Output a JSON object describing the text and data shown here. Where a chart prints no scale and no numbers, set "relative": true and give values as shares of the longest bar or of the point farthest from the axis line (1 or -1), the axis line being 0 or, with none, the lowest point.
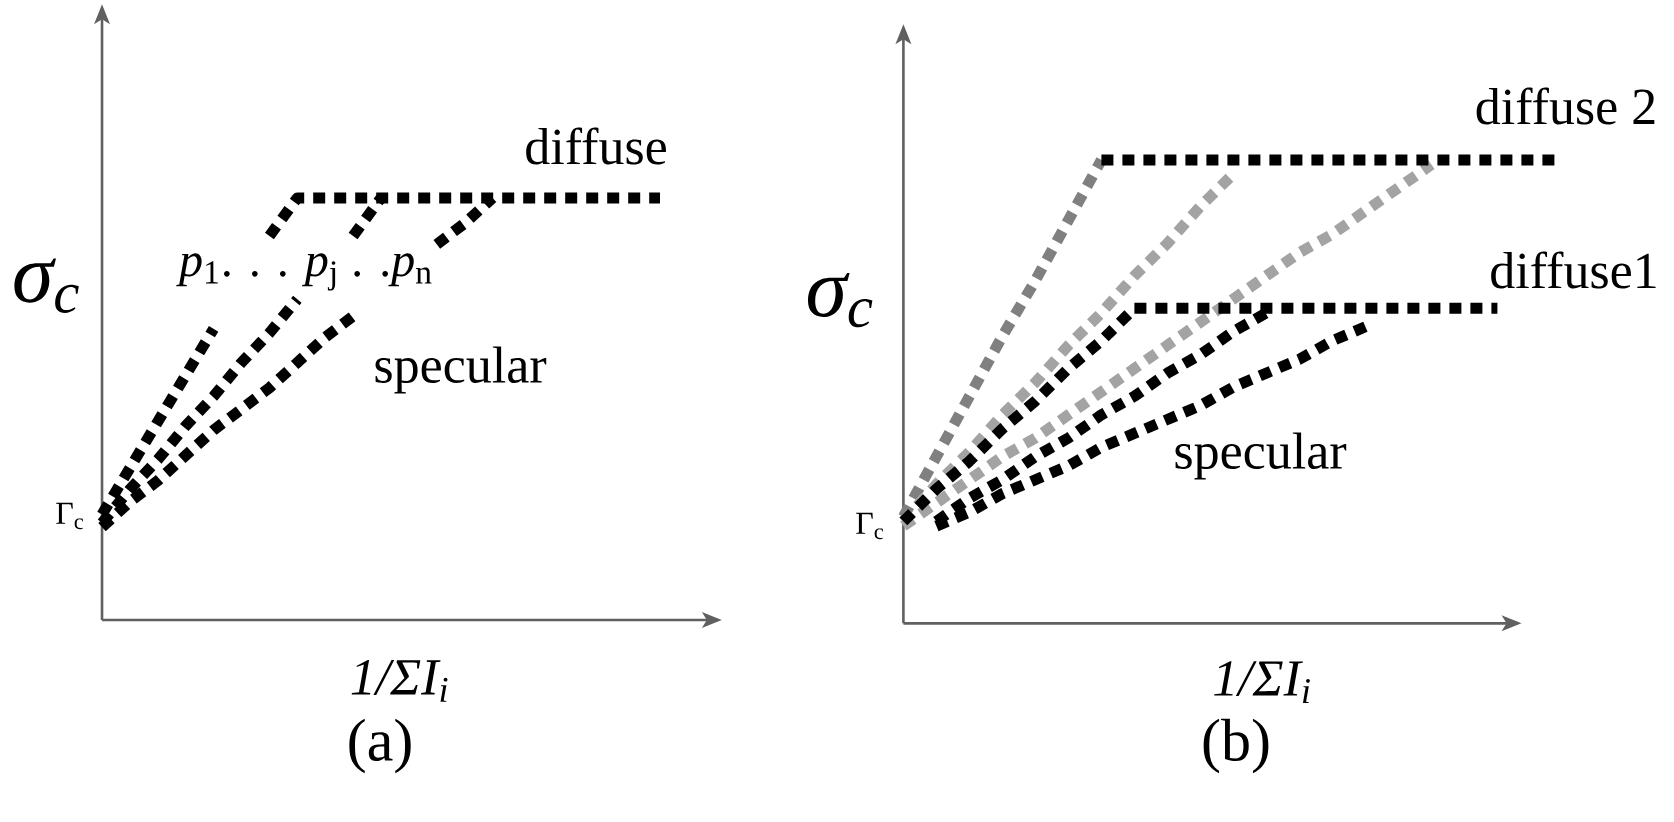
{
  "chart_data": [
    {
      "type": "line",
      "relative": true,
      "line_style": "dotted",
      "xlabel": "1/ΣI$_{i}$",
      "ylabel": "σ$_{c}$",
      "categories": [
        null,
        null,
        null,
        null,
        null,
        null,
        null,
        null,
        null,
        null,
        null,
        null,
        null,
        null,
        null,
        null,
        null,
        null,
        null,
        null,
        null
      ],
      "series": [
        {
          "color": "#000000",
          "values": [
            0.25,
            0.36,
            0.47,
            0.58,
            0.69,
            null,
            null,
            null,
            null,
            null,
            null,
            null,
            null,
            null,
            null,
            null,
            null,
            null,
            null,
            null,
            null
          ]
        },
        {
          "color": "#000000",
          "values": [
            null,
            null,
            null,
            null,
            null,
            null,
            0.91,
            1.0,
            1.0,
            1.0,
            1.0,
            1.0,
            1.0,
            1.0,
            1.0,
            1.0,
            1.0,
            1.0,
            1.0,
            1.0,
            1.0
          ]
        },
        {
          "color": "#000000",
          "values": [
            0.23,
            0.31,
            0.38,
            0.46,
            0.53,
            0.61,
            0.68,
            0.76,
            null,
            null,
            null,
            null,
            null,
            null,
            null,
            null,
            null,
            null,
            null,
            null,
            null
          ]
        },
        {
          "color": "#000000",
          "values": [
            null,
            null,
            null,
            null,
            null,
            null,
            null,
            null,
            null,
            0.91,
            1.0,
            null,
            null,
            null,
            null,
            null,
            null,
            null,
            null,
            null,
            null
          ]
        },
        {
          "color": "#000000",
          "values": [
            0.22,
            0.28,
            0.33,
            0.39,
            0.45,
            0.5,
            0.55,
            0.61,
            0.67,
            0.72,
            null,
            null,
            null,
            null,
            null,
            null,
            null,
            null,
            null,
            null,
            null
          ]
        },
        {
          "color": "#000000",
          "values": [
            null,
            null,
            null,
            null,
            null,
            null,
            null,
            null,
            null,
            null,
            null,
            null,
            0.89,
            0.94,
            1.0,
            null,
            null,
            null,
            null,
            null,
            null
          ]
        }
      ],
      "annotations": [
        "diffuse",
        "*p*$_{1}$. . . *p*$_{j}$ . .*p*$_{n}$",
        "specular",
        "Γ$_{c}$",
        "(a)"
      ]
    },
    {
      "type": "line",
      "relative": true,
      "line_style": "dotted",
      "xlabel": "1/ΣI$_{i}$",
      "ylabel": "σ$_{c}$",
      "categories": [
        null,
        null,
        null,
        null,
        null,
        null,
        null,
        null,
        null,
        null,
        null,
        null,
        null,
        null,
        null,
        null,
        null,
        null,
        null,
        null,
        null
      ],
      "series": [
        {
          "color": "#808080",
          "values": [
            0.23,
            0.36,
            0.49,
            0.62,
            0.74,
            0.87,
            1.0,
            null,
            null,
            null,
            null,
            null,
            null,
            null,
            null,
            null,
            null,
            null,
            null,
            null,
            null
          ]
        },
        {
          "color": "#a3a3a3",
          "values": [
            0.22,
            0.3,
            0.37,
            0.45,
            0.52,
            0.6,
            0.67,
            0.75,
            0.82,
            0.9,
            0.97,
            null,
            null,
            null,
            null,
            null,
            null,
            null,
            null,
            null,
            null
          ]
        },
        {
          "color": "#a3a3a3",
          "values": [
            0.21,
            0.26,
            0.31,
            0.36,
            0.4,
            0.45,
            0.5,
            0.55,
            0.6,
            0.65,
            0.7,
            0.75,
            0.8,
            0.84,
            0.89,
            0.94,
            0.99,
            null,
            null,
            null,
            null
          ]
        },
        {
          "color": "#000000",
          "values": [
            0.22,
            0.29,
            0.35,
            0.42,
            0.48,
            0.55,
            0.61,
            0.68,
            null,
            null,
            null,
            null,
            null,
            null,
            null,
            null,
            null,
            null,
            null,
            null,
            null
          ]
        },
        {
          "color": "#000000",
          "values": [
            null,
            0.22,
            0.27,
            0.31,
            0.36,
            0.4,
            0.45,
            0.49,
            0.54,
            0.58,
            0.63,
            0.67,
            null,
            null,
            null,
            null,
            null,
            null,
            null,
            null,
            null
          ]
        },
        {
          "color": "#000000",
          "values": [
            null,
            0.21,
            0.24,
            0.28,
            0.31,
            0.34,
            0.38,
            0.41,
            0.44,
            0.47,
            0.51,
            0.54,
            0.57,
            0.61,
            0.64,
            null,
            null,
            null,
            null,
            null,
            null
          ]
        },
        {
          "color": "#000000",
          "values": [
            null,
            null,
            null,
            null,
            null,
            null,
            null,
            0.68,
            0.68,
            0.68,
            0.68,
            0.68,
            0.68,
            0.68,
            0.68,
            0.68,
            0.68,
            0.68,
            0.68,
            null,
            null
          ]
        },
        {
          "color": "#000000",
          "values": [
            null,
            null,
            null,
            null,
            null,
            null,
            1.0,
            1.0,
            1.0,
            1.0,
            1.0,
            1.0,
            1.0,
            1.0,
            1.0,
            1.0,
            1.0,
            1.0,
            1.0,
            1.0,
            1.0
          ]
        }
      ],
      "annotations": [
        "diffuse 2",
        "diffuse1",
        "specular",
        "Γ$_{c}$",
        "(b)"
      ]
    }
  ]
}
